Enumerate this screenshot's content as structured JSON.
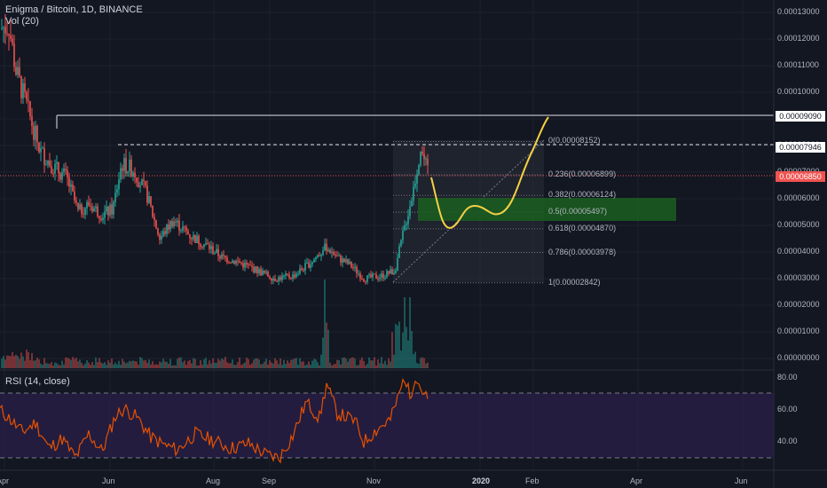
{
  "legend": {
    "title": "Enigma / Bitcoin, 1D, BINANCE",
    "volume": "Vol (20)",
    "rsi": "RSI (14, close)"
  },
  "price_axis": {
    "ticks": [
      "0.00013000",
      "0.00012000",
      "0.00011000",
      "0.00010000",
      "0.00009000",
      "0.00008000",
      "0.00007000",
      "0.00006000",
      "0.00005000",
      "0.00004000",
      "0.00003000",
      "0.00002000",
      "0.00001000",
      "0.00000000"
    ],
    "markers": [
      {
        "label": "0.00009090",
        "style": "white"
      },
      {
        "label": "0.00007946",
        "style": "white"
      },
      {
        "label": "0.00006850",
        "style": "red"
      }
    ]
  },
  "rsi_axis": {
    "ticks": [
      "80.00",
      "60.00",
      "40.00"
    ]
  },
  "time_axis": {
    "labels": [
      {
        "text": "Apr",
        "year": false
      },
      {
        "text": "Jun",
        "year": false
      },
      {
        "text": "Aug",
        "year": false
      },
      {
        "text": "Sep",
        "year": false
      },
      {
        "text": "Nov",
        "year": false
      },
      {
        "text": "2020",
        "year": true
      },
      {
        "text": "Feb",
        "year": false
      },
      {
        "text": "Apr",
        "year": false
      },
      {
        "text": "Jun",
        "year": false
      }
    ]
  },
  "fibonacci": {
    "levels": [
      {
        "label": "0(0.00008152)",
        "ratio": 0,
        "price": 8.152e-05
      },
      {
        "label": "0.236(0.00006899)",
        "ratio": 0.236,
        "price": 6.899e-05
      },
      {
        "label": "0.382(0.00006124)",
        "ratio": 0.382,
        "price": 6.124e-05
      },
      {
        "label": "0.5(0.00005497)",
        "ratio": 0.5,
        "price": 5.497e-05
      },
      {
        "label": "0.618(0.00004870)",
        "ratio": 0.618,
        "price": 4.87e-05
      },
      {
        "label": "0.786(0.00003978)",
        "ratio": 0.786,
        "price": 3.978e-05
      },
      {
        "label": "1(0.00002842)",
        "ratio": 1,
        "price": 2.842e-05
      }
    ]
  },
  "colors": {
    "background": "#131722",
    "up": "#26a69a",
    "down": "#ef5350",
    "rsi_line": "#e65100",
    "rsi_band": "#2a1f4a",
    "projection": "#f5d142",
    "target_zone": "#1b5e20",
    "grid": "#1e222d"
  }
}
